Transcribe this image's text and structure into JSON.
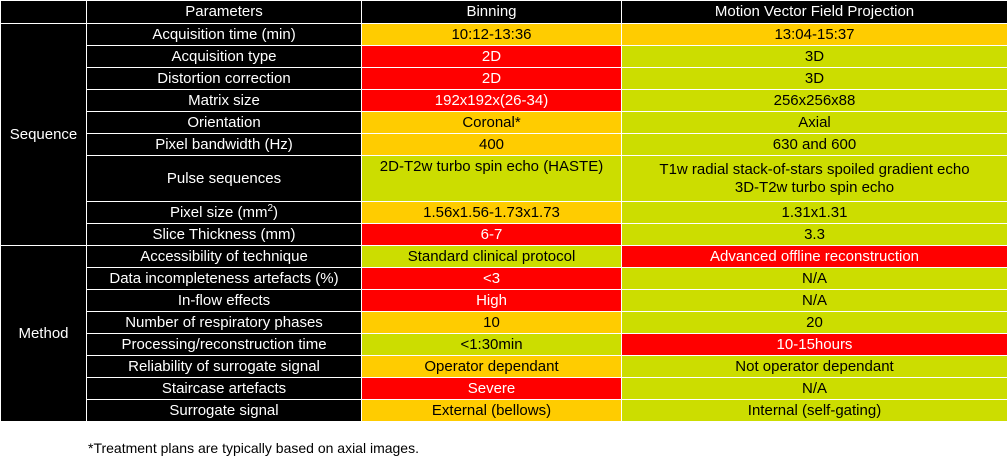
{
  "header": {
    "blank": "",
    "parameters": "Parameters",
    "binning": "Binning",
    "mvf": "Motion Vector Field Projection"
  },
  "sections": {
    "sequence": "Sequence",
    "method": "Method"
  },
  "sequence_rows": [
    {
      "param": "Acquisition time (min)",
      "binning": "10:12-13:36",
      "mvf": "13:04-15:37",
      "binning_color": "yellow",
      "mvf_color": "yellow"
    },
    {
      "param": "Acquisition type",
      "binning": "2D",
      "mvf": "3D",
      "binning_color": "red",
      "mvf_color": "green"
    },
    {
      "param": "Distortion correction",
      "binning": "2D",
      "mvf": "3D",
      "binning_color": "red",
      "mvf_color": "green"
    },
    {
      "param": "Matrix size",
      "binning": "192x192x(26-34)",
      "mvf": "256x256x88",
      "binning_color": "red",
      "mvf_color": "green"
    },
    {
      "param": "Orientation",
      "binning": "Coronal*",
      "mvf": "Axial",
      "binning_color": "yellow",
      "mvf_color": "green"
    },
    {
      "param": "Pixel bandwidth (Hz)",
      "binning": "400",
      "mvf": "630 and 600",
      "binning_color": "yellow",
      "mvf_color": "green"
    },
    {
      "param": "Pulse sequences",
      "binning": "2D-T2w turbo spin echo (HASTE)",
      "mvf": "T1w radial stack-of-stars spoiled gradient echo",
      "mvf_line2": "3D-T2w turbo spin echo",
      "binning_color": "green",
      "mvf_color": "green"
    },
    {
      "param_base": "Pixel size (mm",
      "param_sup": "2",
      "param_end": ")",
      "binning": "1.56x1.56-1.73x1.73",
      "mvf": "1.31x1.31",
      "binning_color": "yellow",
      "mvf_color": "green"
    },
    {
      "param": "Slice Thickness (mm)",
      "binning": "6-7",
      "mvf": "3.3",
      "binning_color": "red",
      "mvf_color": "green"
    }
  ],
  "method_rows": [
    {
      "param": "Accessibility of technique",
      "binning": "Standard clinical protocol",
      "mvf": "Advanced offline reconstruction",
      "binning_color": "green",
      "mvf_color": "red"
    },
    {
      "param": "Data incompleteness artefacts (%)",
      "binning": "<3",
      "mvf": "N/A",
      "binning_color": "red",
      "mvf_color": "green"
    },
    {
      "param": "In-flow effects",
      "binning": "High",
      "mvf": "N/A",
      "binning_color": "red",
      "mvf_color": "green"
    },
    {
      "param": "Number of respiratory phases",
      "binning": "10",
      "mvf": "20",
      "binning_color": "yellow",
      "mvf_color": "green"
    },
    {
      "param": "Processing/reconstruction time",
      "binning": "<1:30min",
      "mvf": "10-15hours",
      "binning_color": "green",
      "mvf_color": "red"
    },
    {
      "param": "Reliability of surrogate signal",
      "binning": "Operator dependant",
      "mvf": "Not operator dependant",
      "binning_color": "yellow",
      "mvf_color": "green"
    },
    {
      "param": "Staircase artefacts",
      "binning": "Severe",
      "mvf": "N/A",
      "binning_color": "red",
      "mvf_color": "green"
    },
    {
      "param": "Surrogate signal",
      "binning": "External (bellows)",
      "mvf": "Internal (self-gating)",
      "binning_color": "yellow",
      "mvf_color": "green"
    }
  ],
  "colors": {
    "red": "#ff0000",
    "yellow": "#ffcc00",
    "green": "#ccdd00",
    "header": "#000000"
  },
  "footnote": "*Treatment plans are typically based on axial images."
}
